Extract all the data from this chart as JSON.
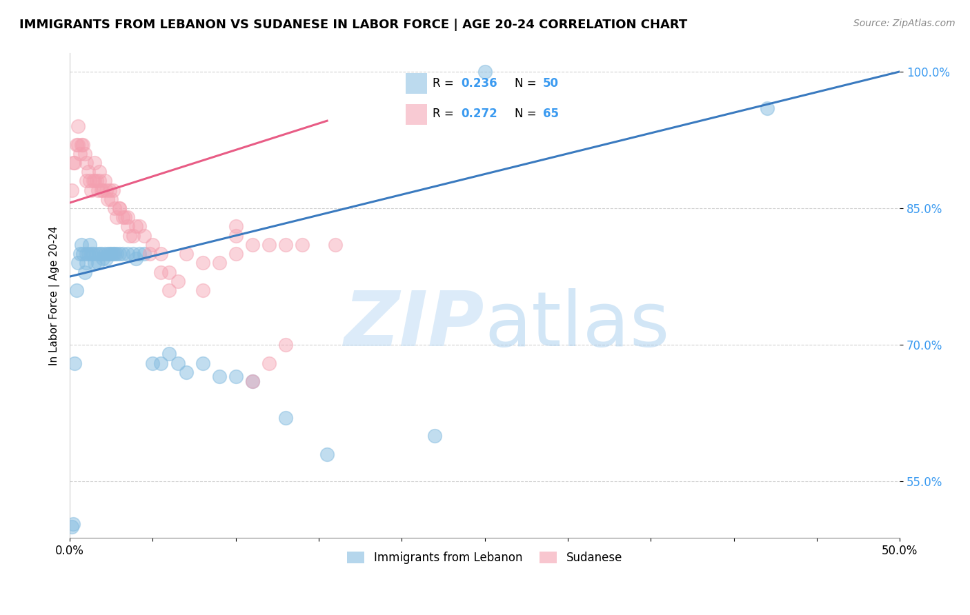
{
  "title": "IMMIGRANTS FROM LEBANON VS SUDANESE IN LABOR FORCE | AGE 20-24 CORRELATION CHART",
  "source": "Source: ZipAtlas.com",
  "ylabel": "In Labor Force | Age 20-24",
  "xlim": [
    0.0,
    0.5
  ],
  "ylim": [
    0.488,
    1.02
  ],
  "yticks": [
    0.55,
    0.7,
    0.85,
    1.0
  ],
  "ytick_labels": [
    "55.0%",
    "70.0%",
    "85.0%",
    "100.0%"
  ],
  "xticks": [
    0.0,
    0.05,
    0.1,
    0.15,
    0.2,
    0.25,
    0.3,
    0.35,
    0.4,
    0.45,
    0.5
  ],
  "xtick_labels": [
    "0.0%",
    "",
    "",
    "",
    "",
    "",
    "",
    "",
    "",
    "",
    "50.0%"
  ],
  "blue_color": "#85bce0",
  "pink_color": "#f4a0b0",
  "blue_line_color": "#3a7abf",
  "pink_line_color": "#e85c85",
  "blue_scatter_x": [
    0.001,
    0.002,
    0.003,
    0.004,
    0.005,
    0.006,
    0.007,
    0.008,
    0.009,
    0.01,
    0.01,
    0.011,
    0.012,
    0.013,
    0.014,
    0.015,
    0.016,
    0.017,
    0.018,
    0.019,
    0.02,
    0.021,
    0.022,
    0.023,
    0.024,
    0.025,
    0.026,
    0.027,
    0.028,
    0.03,
    0.032,
    0.035,
    0.038,
    0.04,
    0.042,
    0.045,
    0.05,
    0.055,
    0.06,
    0.065,
    0.07,
    0.08,
    0.09,
    0.1,
    0.11,
    0.13,
    0.155,
    0.22,
    0.25,
    0.42
  ],
  "blue_scatter_y": [
    0.5,
    0.503,
    0.68,
    0.76,
    0.79,
    0.8,
    0.81,
    0.8,
    0.78,
    0.79,
    0.8,
    0.8,
    0.81,
    0.8,
    0.8,
    0.79,
    0.8,
    0.79,
    0.8,
    0.8,
    0.795,
    0.8,
    0.795,
    0.8,
    0.8,
    0.8,
    0.8,
    0.8,
    0.8,
    0.8,
    0.8,
    0.8,
    0.8,
    0.795,
    0.8,
    0.8,
    0.68,
    0.68,
    0.69,
    0.68,
    0.67,
    0.68,
    0.665,
    0.665,
    0.66,
    0.62,
    0.58,
    0.6,
    1.0,
    0.96
  ],
  "pink_scatter_x": [
    0.001,
    0.002,
    0.003,
    0.004,
    0.005,
    0.005,
    0.006,
    0.007,
    0.008,
    0.009,
    0.01,
    0.01,
    0.011,
    0.012,
    0.013,
    0.014,
    0.015,
    0.015,
    0.016,
    0.017,
    0.018,
    0.018,
    0.019,
    0.02,
    0.021,
    0.022,
    0.023,
    0.024,
    0.025,
    0.026,
    0.027,
    0.028,
    0.03,
    0.032,
    0.033,
    0.035,
    0.036,
    0.038,
    0.04,
    0.042,
    0.045,
    0.048,
    0.05,
    0.055,
    0.06,
    0.065,
    0.07,
    0.08,
    0.09,
    0.1,
    0.03,
    0.035,
    0.06,
    0.08,
    0.1,
    0.11,
    0.12,
    0.13,
    0.14,
    0.16,
    0.055,
    0.1,
    0.11,
    0.12,
    0.13
  ],
  "pink_scatter_y": [
    0.87,
    0.9,
    0.9,
    0.92,
    0.92,
    0.94,
    0.91,
    0.92,
    0.92,
    0.91,
    0.88,
    0.9,
    0.89,
    0.88,
    0.87,
    0.88,
    0.88,
    0.9,
    0.88,
    0.87,
    0.88,
    0.89,
    0.87,
    0.87,
    0.88,
    0.87,
    0.86,
    0.87,
    0.86,
    0.87,
    0.85,
    0.84,
    0.85,
    0.84,
    0.84,
    0.84,
    0.82,
    0.82,
    0.83,
    0.83,
    0.82,
    0.8,
    0.81,
    0.8,
    0.78,
    0.77,
    0.8,
    0.79,
    0.79,
    0.83,
    0.85,
    0.83,
    0.76,
    0.76,
    0.82,
    0.81,
    0.81,
    0.81,
    0.81,
    0.81,
    0.78,
    0.8,
    0.66,
    0.68,
    0.7
  ],
  "blue_trend_x": [
    0.0,
    0.5
  ],
  "blue_trend_y": [
    0.775,
    1.0
  ],
  "pink_trend_x": [
    0.0,
    0.155
  ],
  "pink_trend_y": [
    0.856,
    0.946
  ]
}
